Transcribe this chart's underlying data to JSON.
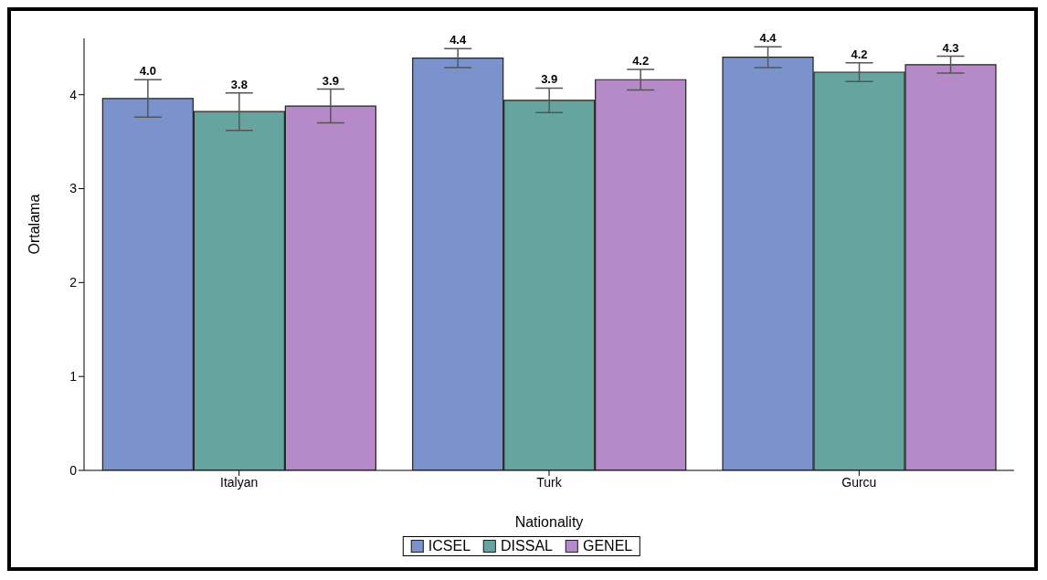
{
  "chart_data": {
    "type": "bar",
    "categories": [
      "Italyan",
      "Turk",
      "Gurcu"
    ],
    "series": [
      {
        "name": "ICSEL",
        "color": "#7b93cc",
        "values": [
          3.96,
          4.39,
          4.4
        ],
        "errors": [
          [
            3.76,
            4.16
          ],
          [
            4.29,
            4.49
          ],
          [
            4.29,
            4.51
          ]
        ],
        "value_labels": [
          "4.0",
          "4.4",
          "4.4"
        ]
      },
      {
        "name": "DISSAL",
        "color": "#66a59f",
        "values": [
          3.82,
          3.94,
          4.24
        ],
        "errors": [
          [
            3.62,
            4.02
          ],
          [
            3.81,
            4.07
          ],
          [
            4.14,
            4.34
          ]
        ],
        "value_labels": [
          "3.8",
          "3.9",
          "4.2"
        ]
      },
      {
        "name": "GENEL",
        "color": "#b689c9",
        "values": [
          3.88,
          4.16,
          4.32
        ],
        "errors": [
          [
            3.7,
            4.06
          ],
          [
            4.05,
            4.27
          ],
          [
            4.23,
            4.41
          ]
        ],
        "value_labels": [
          "3.9",
          "4.2",
          "4.3"
        ]
      }
    ],
    "xlabel": "Nationality",
    "ylabel": "Ortalama",
    "ylim": [
      0,
      4.6
    ],
    "yticks": [
      0,
      1,
      2,
      3,
      4
    ],
    "grid": false,
    "legend": "bottom"
  }
}
